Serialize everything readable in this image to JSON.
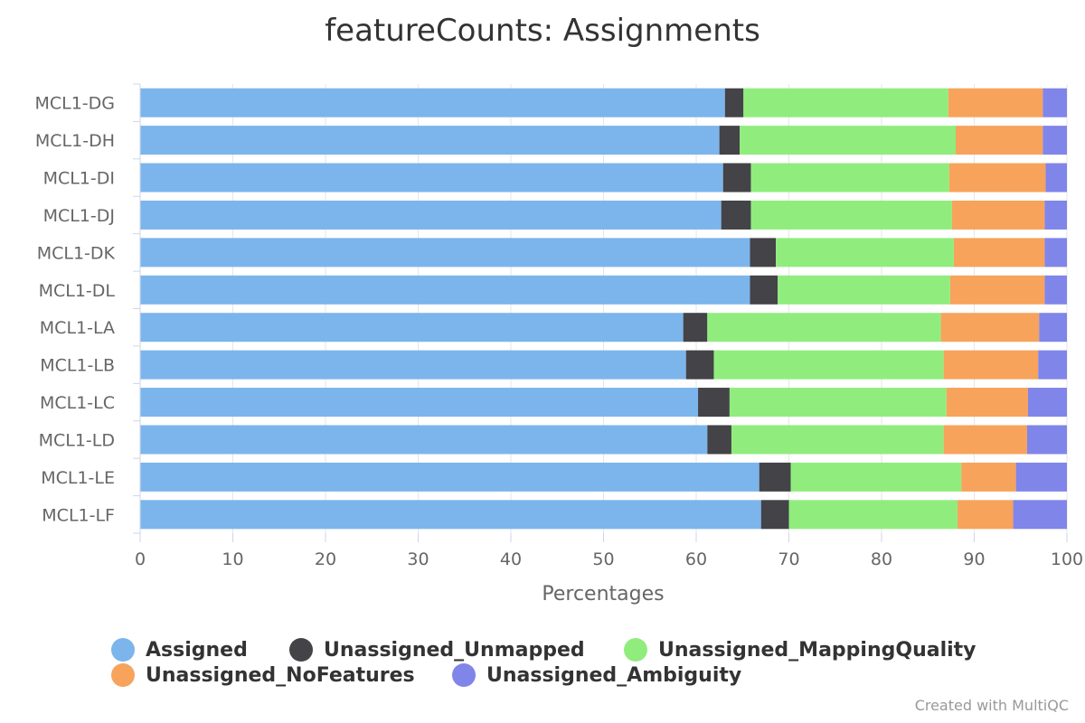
{
  "chart_data": {
    "type": "bar",
    "orientation": "horizontal",
    "stacked": "percent",
    "title": "featureCounts: Assignments",
    "xlabel": "Percentages",
    "ylabel": "",
    "xlim": [
      0,
      100
    ],
    "xticks": [
      "0",
      "10",
      "20",
      "30",
      "40",
      "50",
      "60",
      "70",
      "80",
      "90",
      "100"
    ],
    "categories": [
      "MCL1-DG",
      "MCL1-DH",
      "MCL1-DI",
      "MCL1-DJ",
      "MCL1-DK",
      "MCL1-DL",
      "MCL1-LA",
      "MCL1-LB",
      "MCL1-LC",
      "MCL1-LD",
      "MCL1-LE",
      "MCL1-LF"
    ],
    "series": [
      {
        "name": "Assigned",
        "color": "#7cb5ec",
        "values": [
          63.1,
          62.5,
          62.9,
          62.7,
          65.8,
          65.8,
          58.6,
          58.9,
          60.2,
          61.2,
          66.8,
          67.0
        ]
      },
      {
        "name": "Unassigned_Unmapped",
        "color": "#434348",
        "values": [
          2.0,
          2.2,
          3.0,
          3.2,
          2.8,
          3.0,
          2.6,
          3.0,
          3.4,
          2.6,
          3.4,
          3.0
        ]
      },
      {
        "name": "Unassigned_MappingQuality",
        "color": "#90ed7d",
        "values": [
          22.1,
          23.3,
          21.4,
          21.7,
          19.2,
          18.6,
          25.2,
          24.8,
          23.4,
          22.9,
          18.4,
          18.2
        ]
      },
      {
        "name": "Unassigned_NoFeatures",
        "color": "#f7a35c",
        "values": [
          10.2,
          9.4,
          10.4,
          10.0,
          9.8,
          10.2,
          10.6,
          10.2,
          8.8,
          9.0,
          5.9,
          6.0
        ]
      },
      {
        "name": "Unassigned_Ambiguity",
        "color": "#8085e9",
        "values": [
          2.6,
          2.6,
          2.3,
          2.4,
          2.4,
          2.4,
          3.0,
          3.1,
          4.2,
          4.3,
          5.5,
          5.8
        ]
      }
    ],
    "legend_position": "bottom",
    "grid": true
  },
  "credit": "Created with MultiQC"
}
